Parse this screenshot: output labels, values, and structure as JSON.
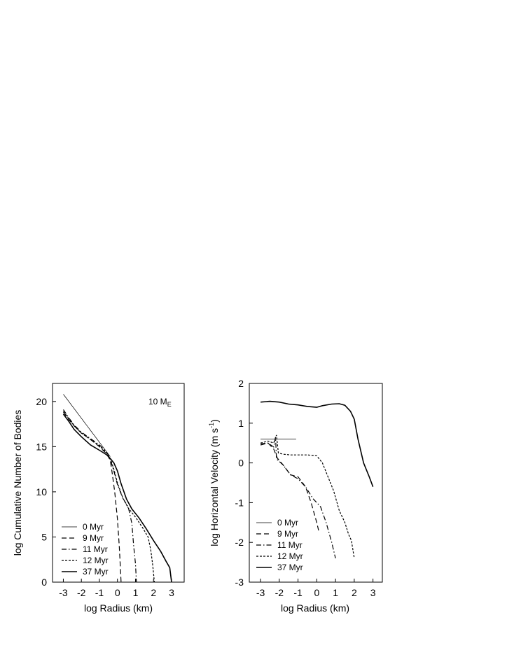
{
  "chart_data": [
    {
      "type": "line",
      "title": "",
      "annotation": {
        "main": "10 M",
        "sub": "E"
      },
      "xlabel": "log Radius (km)",
      "ylabel": "log Cumulative Number of Bodies",
      "xlim": [
        -3.6,
        3.7
      ],
      "ylim": [
        0,
        22
      ],
      "xticks": [
        "-3",
        "-2",
        "-1",
        "0",
        "1",
        "2",
        "3"
      ],
      "yticks": [
        "0",
        "5",
        "10",
        "15",
        "20"
      ],
      "grid": false,
      "legend_position": "bottom-left",
      "series": [
        {
          "name": "0 Myr",
          "style": "thin",
          "points": [
            [
              -3,
              20.8
            ],
            [
              -0.4,
              13.9
            ]
          ]
        },
        {
          "name": "9 Myr",
          "style": "dashed",
          "points": [
            [
              -3,
              18.8
            ],
            [
              -2.7,
              18
            ],
            [
              -2.4,
              17.3
            ],
            [
              -2,
              16.5
            ],
            [
              -1.5,
              15.8
            ],
            [
              -1,
              15
            ],
            [
              -0.6,
              14.2
            ],
            [
              -0.4,
              13.5
            ],
            [
              -0.3,
              12.2
            ],
            [
              -0.15,
              10
            ],
            [
              0,
              7
            ],
            [
              0.1,
              4
            ],
            [
              0.18,
              1
            ],
            [
              0.2,
              0
            ]
          ]
        },
        {
          "name": "11 Myr",
          "style": "dashdot",
          "points": [
            [
              -3,
              19.1
            ],
            [
              -2.7,
              18.2
            ],
            [
              -2.4,
              17.4
            ],
            [
              -2,
              16.6
            ],
            [
              -1.5,
              15.9
            ],
            [
              -1,
              15.2
            ],
            [
              -0.6,
              14.4
            ],
            [
              -0.4,
              13.6
            ],
            [
              -0.2,
              12.3
            ],
            [
              0,
              10.8
            ],
            [
              0.3,
              9.3
            ],
            [
              0.6,
              8.3
            ],
            [
              0.8,
              6.5
            ],
            [
              0.9,
              4
            ],
            [
              1,
              2
            ],
            [
              1.05,
              0
            ]
          ]
        },
        {
          "name": "12 Myr",
          "style": "dotted",
          "points": [
            [
              -3,
              18.9
            ],
            [
              -2.7,
              18.1
            ],
            [
              -2.4,
              17.3
            ],
            [
              -2,
              16.5
            ],
            [
              -1.5,
              15.8
            ],
            [
              -1,
              15.1
            ],
            [
              -0.6,
              14.3
            ],
            [
              -0.4,
              13.7
            ],
            [
              -0.2,
              12.5
            ],
            [
              0,
              11
            ],
            [
              0.3,
              9.3
            ],
            [
              0.6,
              8.2
            ],
            [
              1,
              7.2
            ],
            [
              1.4,
              6
            ],
            [
              1.7,
              5
            ],
            [
              1.85,
              3.5
            ],
            [
              1.95,
              2
            ],
            [
              2.05,
              0
            ]
          ]
        },
        {
          "name": "37 Myr",
          "style": "solid",
          "points": [
            [
              -3,
              18.6
            ],
            [
              -2.7,
              17.8
            ],
            [
              -2.4,
              16.9
            ],
            [
              -2,
              16.1
            ],
            [
              -1.5,
              15.2
            ],
            [
              -1,
              14.6
            ],
            [
              -0.6,
              14.1
            ],
            [
              -0.4,
              13.7
            ],
            [
              -0.2,
              13.2
            ],
            [
              0,
              12.3
            ],
            [
              0.2,
              10.9
            ],
            [
              0.5,
              9.2
            ],
            [
              0.8,
              8.1
            ],
            [
              1.2,
              7.1
            ],
            [
              1.6,
              5.9
            ],
            [
              2,
              4.6
            ],
            [
              2.4,
              3.4
            ],
            [
              2.7,
              2.3
            ],
            [
              2.9,
              1.6
            ],
            [
              3,
              0
            ]
          ]
        }
      ]
    },
    {
      "type": "line",
      "title": "",
      "xlabel": "log Radius (km)",
      "ylabel": "log Horizontal Velocity (m s",
      "ylabel_sup": "-1",
      "ylabel_end": ")",
      "xlim": [
        -3.6,
        3.5
      ],
      "ylim": [
        -3,
        2
      ],
      "xticks": [
        "-3",
        "-2",
        "-1",
        "0",
        "1",
        "2",
        "3"
      ],
      "yticks": [
        "-3",
        "-2",
        "-1",
        "0",
        "1",
        "2"
      ],
      "grid": false,
      "legend_position": "bottom-left",
      "series": [
        {
          "name": "0 Myr",
          "style": "thin",
          "points": [
            [
              -3,
              0.6
            ],
            [
              -1.1,
              0.6
            ]
          ]
        },
        {
          "name": "9 Myr",
          "style": "dashed",
          "points": [
            [
              -3,
              0.48
            ],
            [
              -2.6,
              0.5
            ],
            [
              -2.3,
              0.35
            ],
            [
              -2.1,
              0.12
            ],
            [
              -1.8,
              -0.05
            ],
            [
              -1.4,
              -0.3
            ],
            [
              -1,
              -0.35
            ],
            [
              -0.6,
              -0.6
            ],
            [
              -0.3,
              -1
            ],
            [
              0,
              -1.5
            ],
            [
              0.1,
              -1.7
            ]
          ]
        },
        {
          "name": "11 Myr",
          "style": "dashdot",
          "points": [
            [
              -3,
              0.45
            ],
            [
              -2.6,
              0.5
            ],
            [
              -2.3,
              0.4
            ],
            [
              -2.2,
              0.65
            ],
            [
              -2.15,
              0.1
            ],
            [
              -1.8,
              -0.05
            ],
            [
              -1.4,
              -0.3
            ],
            [
              -1,
              -0.4
            ],
            [
              -0.6,
              -0.6
            ],
            [
              -0.2,
              -0.9
            ],
            [
              0.2,
              -1.1
            ],
            [
              0.5,
              -1.5
            ],
            [
              0.8,
              -2
            ],
            [
              1,
              -2.4
            ]
          ]
        },
        {
          "name": "12 Myr",
          "style": "dotted",
          "points": [
            [
              -3,
              0.5
            ],
            [
              -2.6,
              0.55
            ],
            [
              -2.3,
              0.5
            ],
            [
              -2.15,
              0.7
            ],
            [
              -2.05,
              0.25
            ],
            [
              -1.8,
              0.22
            ],
            [
              -1.4,
              0.2
            ],
            [
              -1,
              0.2
            ],
            [
              -0.5,
              0.2
            ],
            [
              0,
              0.18
            ],
            [
              0.3,
              0
            ],
            [
              0.6,
              -0.35
            ],
            [
              0.9,
              -0.7
            ],
            [
              1.2,
              -1.2
            ],
            [
              1.5,
              -1.5
            ],
            [
              1.7,
              -1.8
            ],
            [
              1.85,
              -1.95
            ],
            [
              2,
              -2.4
            ]
          ]
        },
        {
          "name": "37 Myr",
          "style": "solid",
          "points": [
            [
              -3,
              1.53
            ],
            [
              -2.5,
              1.55
            ],
            [
              -2,
              1.53
            ],
            [
              -1.5,
              1.48
            ],
            [
              -1,
              1.46
            ],
            [
              -0.5,
              1.42
            ],
            [
              0,
              1.4
            ],
            [
              0.3,
              1.44
            ],
            [
              0.8,
              1.48
            ],
            [
              1.2,
              1.49
            ],
            [
              1.5,
              1.45
            ],
            [
              1.8,
              1.3
            ],
            [
              2,
              1.1
            ],
            [
              2.2,
              0.6
            ],
            [
              2.5,
              0
            ],
            [
              2.8,
              -0.35
            ],
            [
              3,
              -0.6
            ]
          ]
        }
      ]
    }
  ]
}
